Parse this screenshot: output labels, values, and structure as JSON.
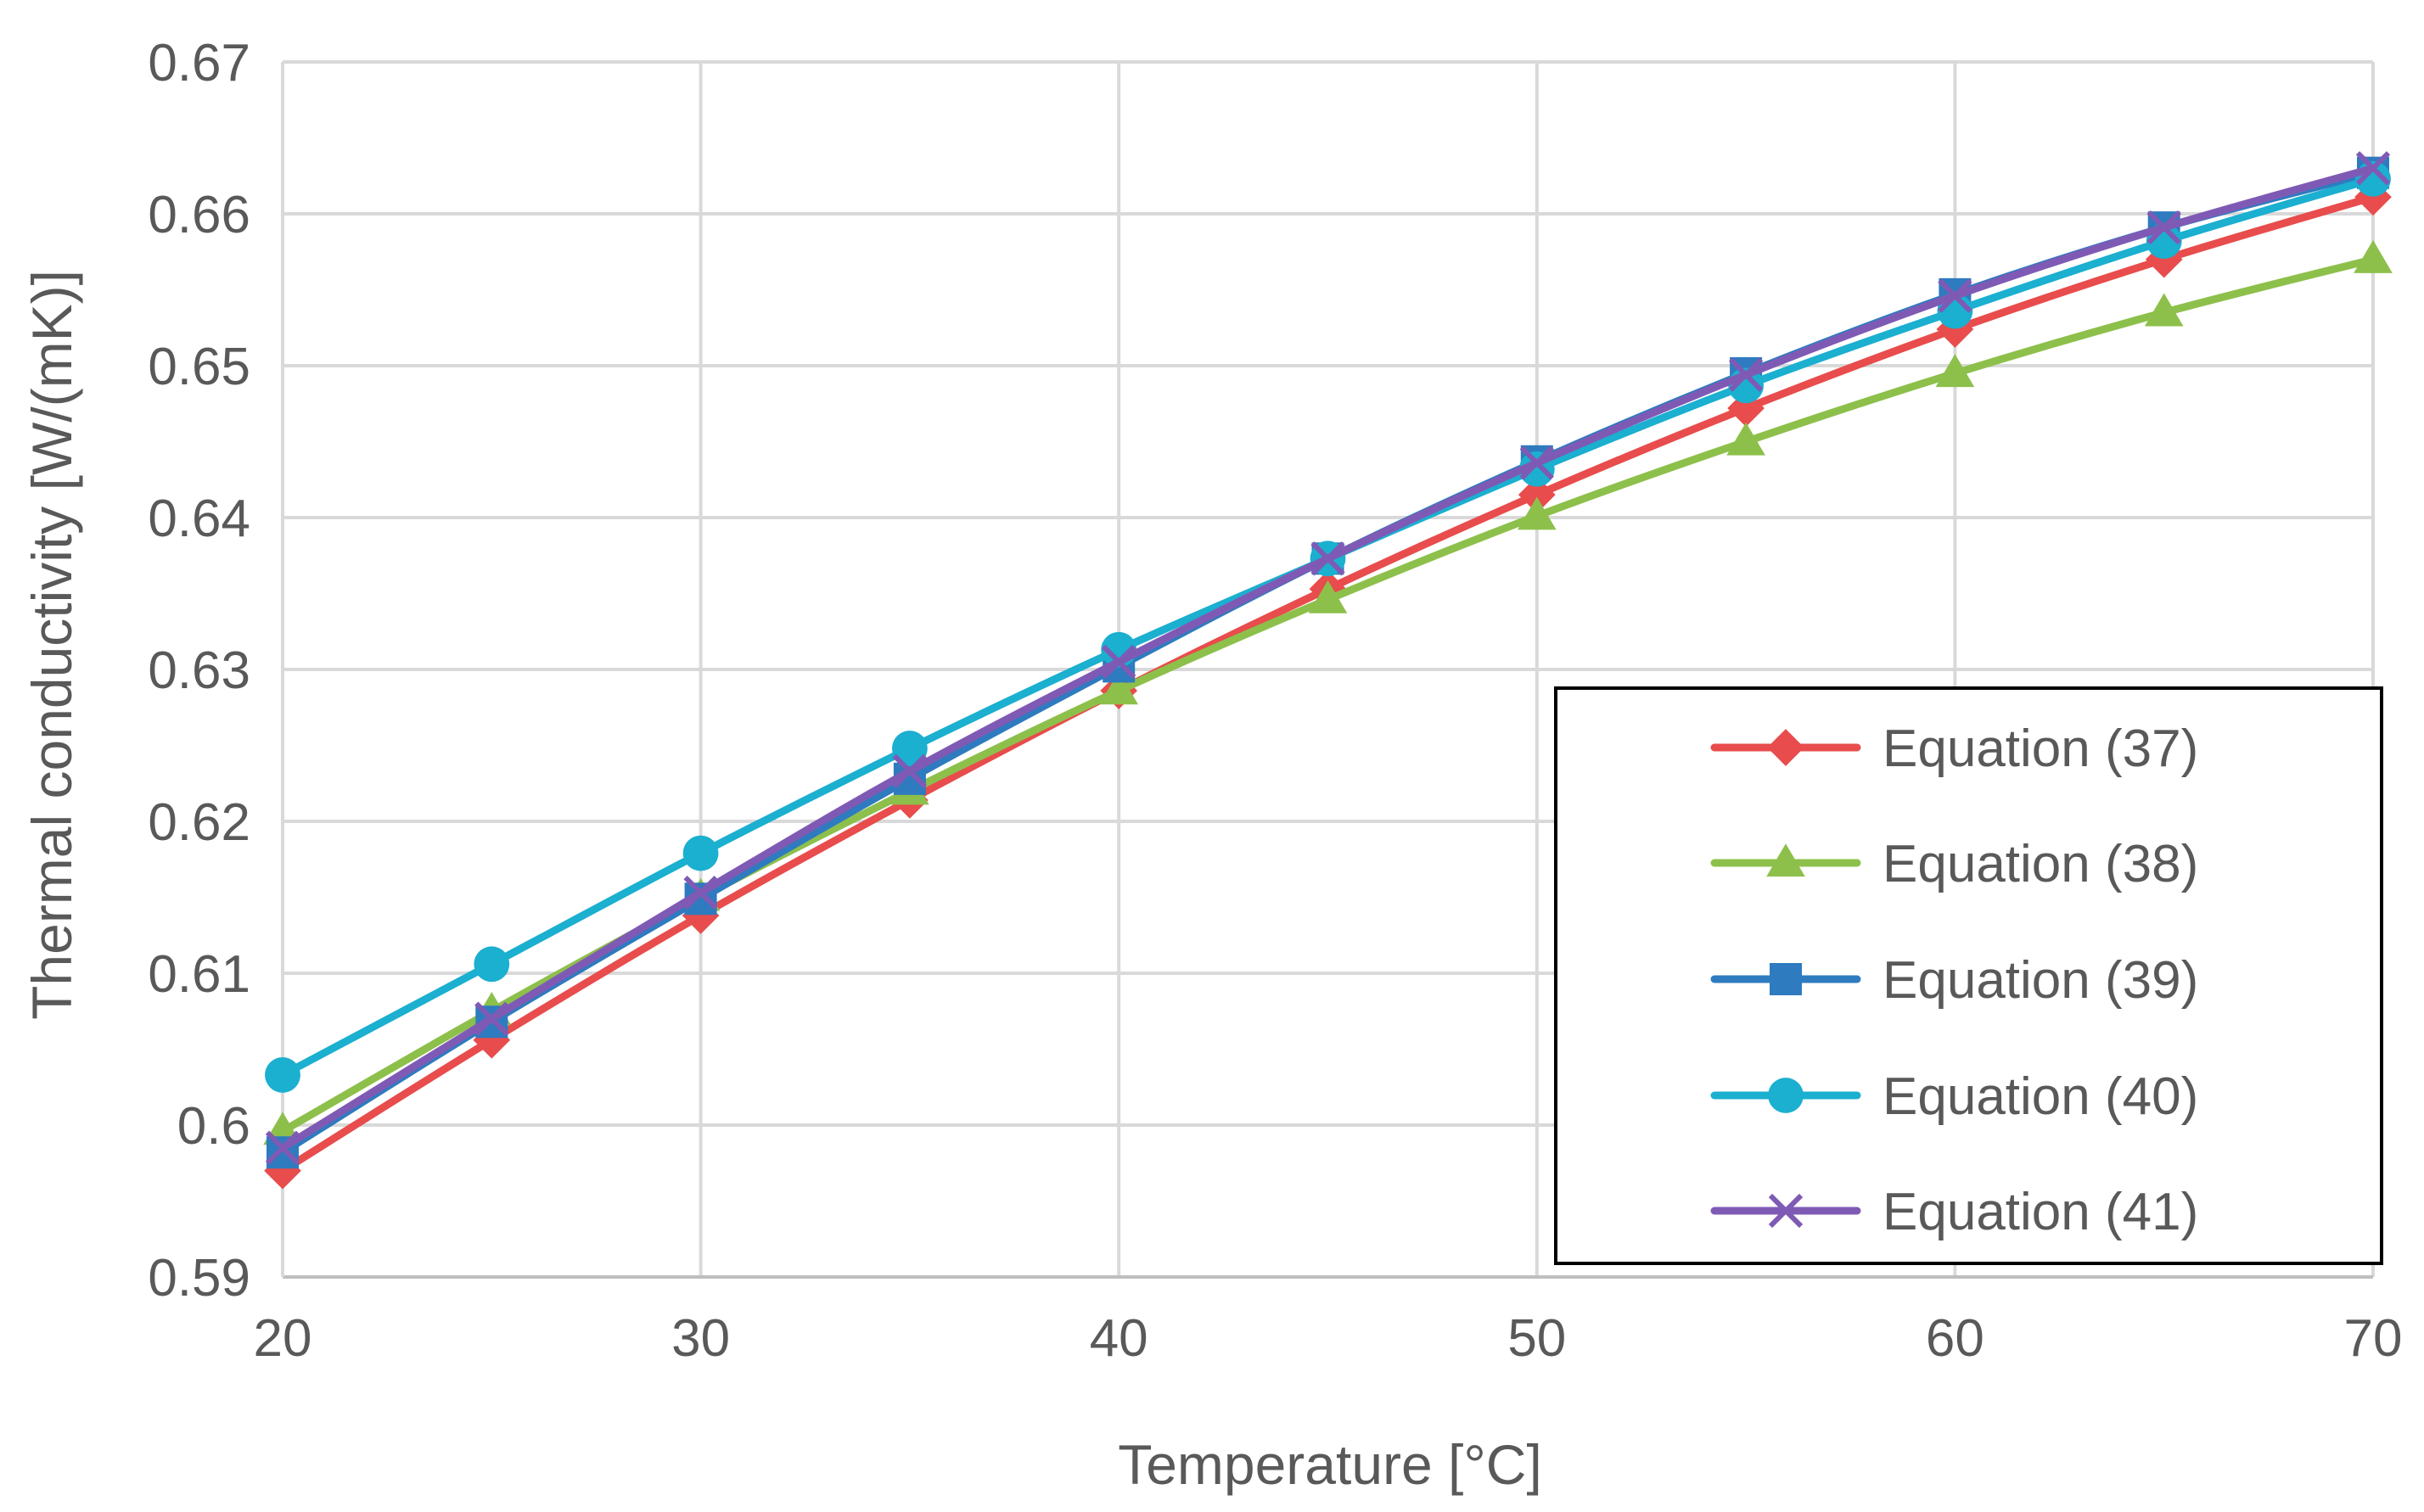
{
  "chart_data": {
    "type": "line",
    "title": "",
    "xlabel": "Temperature [°C]",
    "ylabel": "Thermal conductivity [W/(mK)]",
    "xlim": [
      20,
      70
    ],
    "ylim": [
      0.59,
      0.67
    ],
    "xticks": [
      20,
      30,
      40,
      50,
      60,
      70
    ],
    "xtick_labels": [
      "20",
      "30",
      "40",
      "50",
      "60",
      "70"
    ],
    "yticks": [
      0.59,
      0.6,
      0.61,
      0.62,
      0.63,
      0.64,
      0.65,
      0.66,
      0.67
    ],
    "ytick_labels": [
      "0.59",
      "0.6",
      "0.61",
      "0.62",
      "0.63",
      "0.64",
      "0.65",
      "0.66",
      "0.67"
    ],
    "grid": true,
    "legend_position": "bottom-right",
    "x": [
      20,
      25,
      30,
      35,
      40,
      45,
      50,
      55,
      60,
      65,
      70
    ],
    "series": [
      {
        "name": "Equation (37)",
        "color": "#E84C4C",
        "marker": "diamond",
        "values": [
          0.597,
          0.6056,
          0.6138,
          0.6214,
          0.6286,
          0.6353,
          0.6415,
          0.6472,
          0.6524,
          0.657,
          0.6611
        ]
      },
      {
        "name": "Equation (38)",
        "color": "#8DC04B",
        "marker": "triangle",
        "values": [
          0.5996,
          0.6075,
          0.615,
          0.622,
          0.6286,
          0.6346,
          0.6401,
          0.645,
          0.6495,
          0.6535,
          0.657
        ]
      },
      {
        "name": "Equation (39)",
        "color": "#2E7BBF",
        "marker": "square",
        "values": [
          0.5982,
          0.6068,
          0.6149,
          0.6228,
          0.6302,
          0.6373,
          0.6437,
          0.6495,
          0.6547,
          0.6591,
          0.6627
        ]
      },
      {
        "name": "Equation (40)",
        "color": "#1BAFD0",
        "marker": "circle",
        "values": [
          0.6033,
          0.6106,
          0.6179,
          0.6248,
          0.6313,
          0.6373,
          0.6432,
          0.6487,
          0.6536,
          0.6582,
          0.6623
        ]
      },
      {
        "name": "Equation (41)",
        "color": "#7F5AB5",
        "marker": "x",
        "values": [
          0.5985,
          0.607,
          0.6153,
          0.6233,
          0.6305,
          0.6373,
          0.6436,
          0.6494,
          0.6546,
          0.6591,
          0.663
        ]
      }
    ]
  }
}
